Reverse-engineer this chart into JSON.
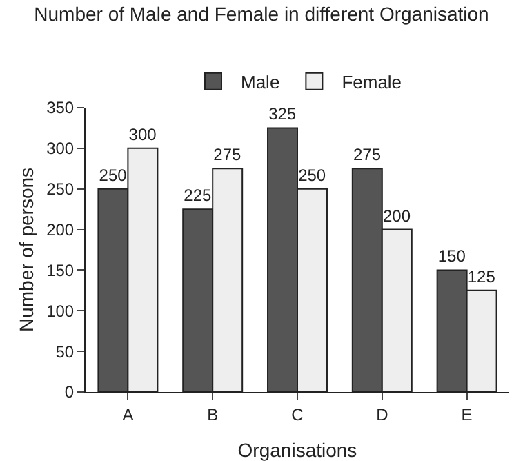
{
  "chart_data": {
    "type": "bar",
    "title": "Number of Male and Female in different Organisation",
    "xlabel": "Organisations",
    "ylabel": "Number of persons",
    "categories": [
      "A",
      "B",
      "C",
      "D",
      "E"
    ],
    "series": [
      {
        "name": "Male",
        "color": "#555555",
        "values": [
          250,
          225,
          325,
          275,
          150
        ]
      },
      {
        "name": "Female",
        "color": "#eeeeee",
        "values": [
          300,
          275,
          250,
          200,
          125
        ]
      }
    ],
    "ylim": [
      0,
      350
    ],
    "yticks": [
      0,
      50,
      100,
      150,
      200,
      250,
      300,
      350
    ],
    "grid": false,
    "legend": "top",
    "data_labels": true
  }
}
